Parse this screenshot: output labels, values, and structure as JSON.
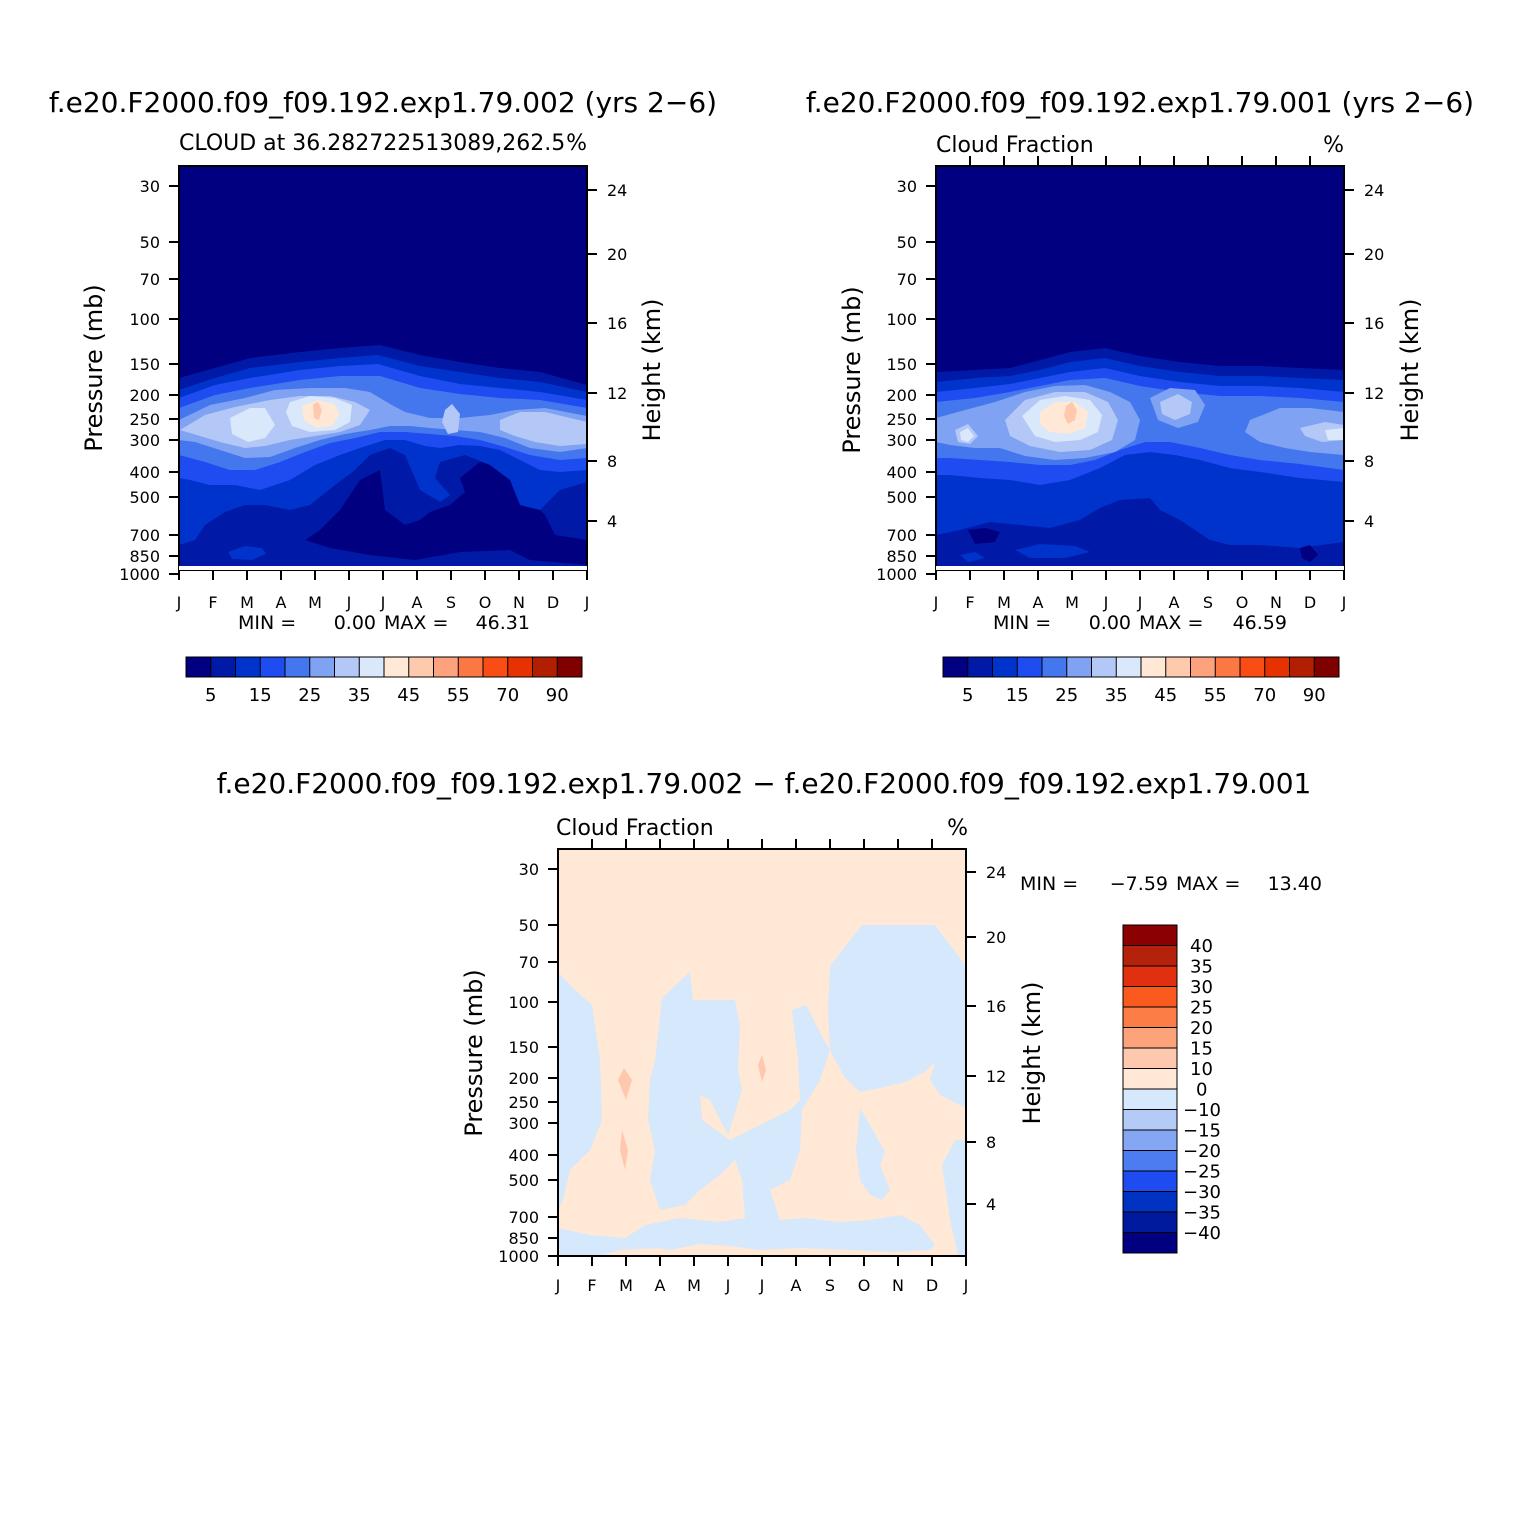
{
  "chart_data": [
    {
      "type": "heatmap",
      "title": "f.e20.F2000.f09_f09.192.exp1.79.002 (yrs 2−6)",
      "left_label": "CLOUD at 36.282722513089,262.5",
      "right_label": "%",
      "ylabel": "Pressure (mb)",
      "ylabel_right": "Height (km)",
      "x_tick_labels": [
        "J",
        "F",
        "M",
        "A",
        "M",
        "J",
        "J",
        "A",
        "S",
        "O",
        "N",
        "D",
        "J"
      ],
      "y_ticks": [
        30,
        50,
        70,
        100,
        150,
        200,
        250,
        300,
        400,
        500,
        700,
        850,
        1000
      ],
      "y_ticks_right": [
        24,
        20,
        16,
        12,
        8,
        4
      ],
      "ylim": [
        1000,
        20
      ],
      "scale": "log-pressure",
      "stats": {
        "min_label": "MIN =",
        "min": "0.00",
        "max_label": "MAX =",
        "max": "46.31"
      },
      "colorbar": {
        "tick_labels": [
          "5",
          "15",
          "25",
          "35",
          "45",
          "55",
          "70",
          "90"
        ],
        "colors": [
          "#000080",
          "#0019a6",
          "#0033cc",
          "#1e4cf0",
          "#4477ee",
          "#7fa3f2",
          "#b3c8f6",
          "#d9e8fb",
          "#ffe8d5",
          "#ffc9ad",
          "#fea27e",
          "#fb7844",
          "#f94d15",
          "#e63100",
          "#b21e00",
          "#800000"
        ]
      },
      "notable_features": [
        {
          "month": "May",
          "pressure_mb": 225,
          "value_range": "40-45"
        },
        {
          "month": "Mar",
          "pressure_mb": 260,
          "value_range": "35-40"
        }
      ]
    },
    {
      "type": "heatmap",
      "title": "f.e20.F2000.f09_f09.192.exp1.79.001 (yrs 2−6)",
      "left_label": "Cloud Fraction",
      "right_label": "%",
      "ylabel": "Pressure (mb)",
      "ylabel_right": "Height (km)",
      "x_tick_labels": [
        "J",
        "F",
        "M",
        "A",
        "M",
        "J",
        "J",
        "A",
        "S",
        "O",
        "N",
        "D",
        "J"
      ],
      "y_ticks": [
        30,
        50,
        70,
        100,
        150,
        200,
        250,
        300,
        400,
        500,
        700,
        850,
        1000
      ],
      "y_ticks_right": [
        24,
        20,
        16,
        12,
        8,
        4
      ],
      "ylim": [
        1000,
        20
      ],
      "scale": "log-pressure",
      "stats": {
        "min_label": "MIN =",
        "min": "0.00",
        "max_label": "MAX =",
        "max": "46.59"
      },
      "colorbar": {
        "tick_labels": [
          "5",
          "15",
          "25",
          "35",
          "45",
          "55",
          "70",
          "90"
        ],
        "colors": [
          "#000080",
          "#0019a6",
          "#0033cc",
          "#1e4cf0",
          "#4477ee",
          "#7fa3f2",
          "#b3c8f6",
          "#d9e8fb",
          "#ffe8d5",
          "#ffc9ad",
          "#fea27e",
          "#fb7844",
          "#f94d15",
          "#e63100",
          "#b21e00",
          "#800000"
        ]
      },
      "notable_features": [
        {
          "month": "May",
          "pressure_mb": 225,
          "value_range": "40-45"
        },
        {
          "month": "Jul",
          "pressure_mb": 220,
          "value_range": "30-35"
        }
      ]
    },
    {
      "type": "heatmap",
      "title": "f.e20.F2000.f09_f09.192.exp1.79.002 − f.e20.F2000.f09_f09.192.exp1.79.001",
      "left_label": "Cloud Fraction",
      "right_label": "%",
      "ylabel": "Pressure (mb)",
      "ylabel_right": "Height (km)",
      "x_tick_labels": [
        "J",
        "F",
        "M",
        "A",
        "M",
        "J",
        "J",
        "A",
        "S",
        "O",
        "N",
        "D",
        "J"
      ],
      "y_ticks": [
        30,
        50,
        70,
        100,
        150,
        200,
        250,
        300,
        400,
        500,
        700,
        850,
        1000
      ],
      "y_ticks_right": [
        24,
        20,
        16,
        12,
        8,
        4
      ],
      "ylim": [
        1000,
        20
      ],
      "scale": "log-pressure",
      "stats": {
        "min_label": "MIN =",
        "min": "−7.59",
        "max_label": "MAX =",
        "max": "13.40"
      },
      "colorbar": {
        "tick_labels": [
          "40",
          "35",
          "30",
          "25",
          "20",
          "15",
          "10",
          "0",
          "−10",
          "−15",
          "−20",
          "−25",
          "−30",
          "−35",
          "−40"
        ],
        "colors_top_to_bottom": [
          "#8b0000",
          "#b5220c",
          "#e0300f",
          "#fa5a1e",
          "#fc7d46",
          "#fda37c",
          "#fec8ae",
          "#ffe9d6",
          "#d6e8fb",
          "#b4cbf7",
          "#84a6f3",
          "#4d7bf0",
          "#1e4cf0",
          "#0033c2",
          "#001a9e",
          "#000080"
        ]
      },
      "dominant_levels": [
        {
          "range": "0 to 10",
          "color": "#ffe9d6"
        },
        {
          "range": "-10 to 0",
          "color": "#d6e8fb"
        },
        {
          "range": "10 to 15",
          "color": "#fec8ae"
        }
      ]
    }
  ]
}
